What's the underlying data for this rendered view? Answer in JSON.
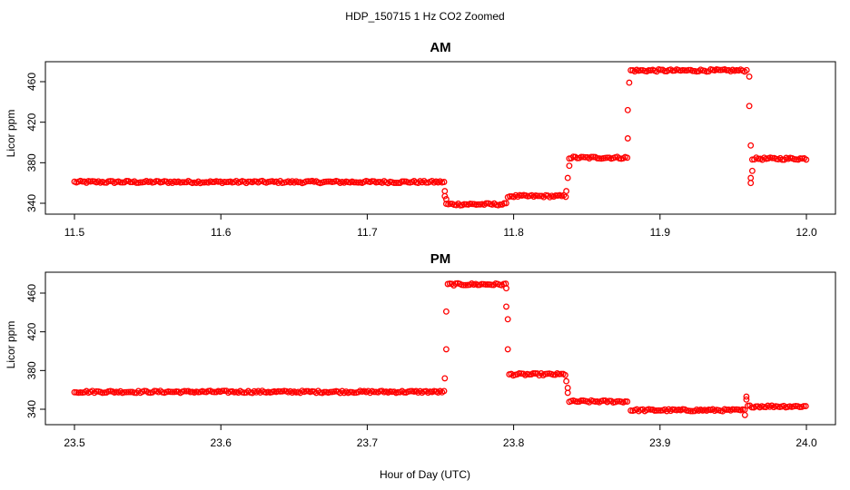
{
  "figure": {
    "title": "HDP_150715  1 Hz CO2 Zoomed",
    "xlabel": "Hour of Day (UTC)"
  },
  "marker_color": "#ff0000",
  "chart_data": [
    {
      "type": "scatter",
      "title": "AM",
      "ylabel": "Licor ppm",
      "xlim": [
        11.5,
        12.0
      ],
      "ylim": [
        340,
        470
      ],
      "xticks": [
        "11.5",
        "11.6",
        "11.7",
        "11.8",
        "11.9",
        "12.0"
      ],
      "yticks": [
        "340",
        "380",
        "420",
        "460"
      ],
      "grid": false,
      "segments": [
        {
          "x_start": 11.5,
          "x_end": 11.753,
          "y": 361
        },
        {
          "x_start": 11.754,
          "x_end": 11.795,
          "y": 339
        },
        {
          "x_start": 11.796,
          "x_end": 11.836,
          "y": 347
        },
        {
          "x_start": 11.838,
          "x_end": 11.878,
          "y": 385
        },
        {
          "x_start": 11.88,
          "x_end": 11.96,
          "y": 471
        },
        {
          "x_start": 11.963,
          "x_end": 12.0,
          "y": 384
        }
      ],
      "transition_points": [
        {
          "x": 11.753,
          "y": 352
        },
        {
          "x": 11.753,
          "y": 347
        },
        {
          "x": 11.754,
          "y": 344
        },
        {
          "x": 11.836,
          "y": 352
        },
        {
          "x": 11.837,
          "y": 365
        },
        {
          "x": 11.838,
          "y": 377
        },
        {
          "x": 11.878,
          "y": 404
        },
        {
          "x": 11.878,
          "y": 432
        },
        {
          "x": 11.879,
          "y": 459
        },
        {
          "x": 11.961,
          "y": 465
        },
        {
          "x": 11.961,
          "y": 436
        },
        {
          "x": 11.962,
          "y": 397
        },
        {
          "x": 11.962,
          "y": 365
        },
        {
          "x": 11.962,
          "y": 360
        },
        {
          "x": 11.963,
          "y": 372
        }
      ]
    },
    {
      "type": "scatter",
      "title": "PM",
      "ylabel": "Licor ppm",
      "xlim": [
        23.5,
        24.0
      ],
      "ylim": [
        340,
        470
      ],
      "xticks": [
        "23.5",
        "23.6",
        "23.7",
        "23.8",
        "23.9",
        "24.0"
      ],
      "yticks": [
        "340",
        "380",
        "420",
        "460"
      ],
      "grid": false,
      "segments": [
        {
          "x_start": 23.5,
          "x_end": 23.753,
          "y": 358
        },
        {
          "x_start": 23.755,
          "x_end": 23.795,
          "y": 469
        },
        {
          "x_start": 23.797,
          "x_end": 23.836,
          "y": 376
        },
        {
          "x_start": 23.838,
          "x_end": 23.878,
          "y": 348
        },
        {
          "x_start": 23.88,
          "x_end": 23.958,
          "y": 339
        },
        {
          "x_start": 23.96,
          "x_end": 24.0,
          "y": 343
        }
      ],
      "transition_points": [
        {
          "x": 23.753,
          "y": 372
        },
        {
          "x": 23.754,
          "y": 402
        },
        {
          "x": 23.754,
          "y": 441
        },
        {
          "x": 23.795,
          "y": 465
        },
        {
          "x": 23.795,
          "y": 446
        },
        {
          "x": 23.796,
          "y": 433
        },
        {
          "x": 23.796,
          "y": 402
        },
        {
          "x": 23.836,
          "y": 369
        },
        {
          "x": 23.837,
          "y": 362
        },
        {
          "x": 23.837,
          "y": 357
        },
        {
          "x": 23.958,
          "y": 334
        },
        {
          "x": 23.959,
          "y": 353
        },
        {
          "x": 23.959,
          "y": 350
        }
      ]
    }
  ]
}
